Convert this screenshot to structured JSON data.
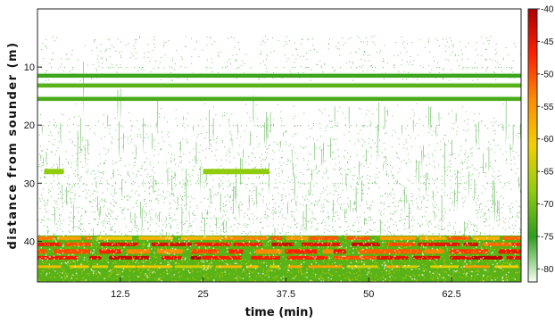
{
  "chart_data": {
    "type": "heatmap",
    "title": "",
    "xlabel": "time (min)",
    "ylabel": "distance from sounder (m)",
    "xlim": [
      0,
      73
    ],
    "ylim": [
      47,
      0
    ],
    "x_ticks": [
      12.5,
      25,
      37.5,
      50,
      62.5
    ],
    "x_tick_labels": [
      "12.5",
      "25",
      "37.5",
      "50",
      "62.5"
    ],
    "y_ticks": [
      10,
      20,
      30,
      40
    ],
    "y_tick_labels": [
      "10",
      "20",
      "30",
      "40"
    ],
    "colorbar": {
      "range": [
        -82,
        -40
      ],
      "ticks": [
        -40,
        -45,
        -50,
        -55,
        -60,
        -65,
        -70,
        -75,
        -80
      ],
      "tick_labels": [
        "-40",
        "-45",
        "-50",
        "-55",
        "-60",
        "-65",
        "-70",
        "-75",
        "-80"
      ],
      "colors": [
        "#b00000",
        "#ff2000",
        "#ff8c00",
        "#f2d000",
        "#90cc10",
        "#2e9e1e",
        "#f4fff0"
      ]
    },
    "features": [
      {
        "kind": "layer",
        "depth": 11.5,
        "time_range": [
          0,
          73
        ],
        "level": -74
      },
      {
        "kind": "layer",
        "depth": 13.2,
        "time_range": [
          0,
          73
        ],
        "level": -72
      },
      {
        "kind": "layer",
        "depth": 15.5,
        "time_range": [
          0,
          73
        ],
        "level": -73
      },
      {
        "kind": "patch",
        "depth": 28,
        "time_range": [
          1,
          4
        ],
        "level": -68
      },
      {
        "kind": "patch",
        "depth": 28,
        "time_range": [
          25,
          35
        ],
        "level": -68
      },
      {
        "kind": "scatter_region",
        "depth_range": [
          16,
          40
        ],
        "time_range": [
          0,
          73
        ],
        "level": -77
      },
      {
        "kind": "bottom_band",
        "depth_range": [
          39,
          47
        ],
        "time_range": [
          0,
          73
        ],
        "level": -50
      }
    ]
  }
}
